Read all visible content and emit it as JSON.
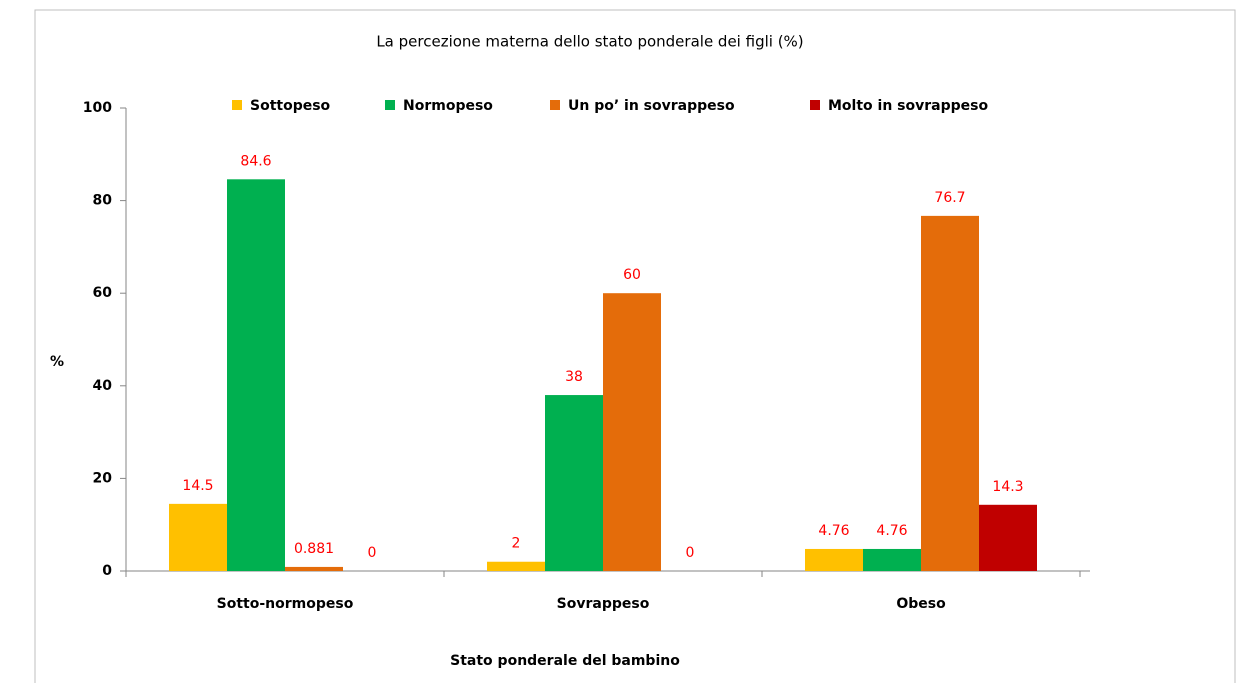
{
  "chart_data": {
    "type": "bar",
    "title": "La percezione materna dello stato ponderale dei figli (%)",
    "xlabel": "Stato ponderale del bambino",
    "ylabel": "%",
    "categories": [
      "Sotto-normopeso",
      "Sovrappeso",
      "Obeso"
    ],
    "series": [
      {
        "name": "Sottopeso",
        "color": "#ffc000",
        "values": [
          14.5,
          2,
          4.76
        ]
      },
      {
        "name": "Normopeso",
        "color": "#00b050",
        "values": [
          84.6,
          38,
          4.76
        ]
      },
      {
        "name": "Un po’ in sovrappeso",
        "color": "#e46c0a",
        "values": [
          0.881,
          60,
          76.7
        ]
      },
      {
        "name": "Molto in sovrappeso",
        "color": "#c00000",
        "values": [
          0,
          0,
          14.3
        ]
      }
    ],
    "ylim": [
      0,
      100
    ],
    "yticks": [
      0,
      20,
      40,
      60,
      80,
      100
    ],
    "value_label_color": "#ff0000",
    "legend": "top",
    "grid": false
  }
}
